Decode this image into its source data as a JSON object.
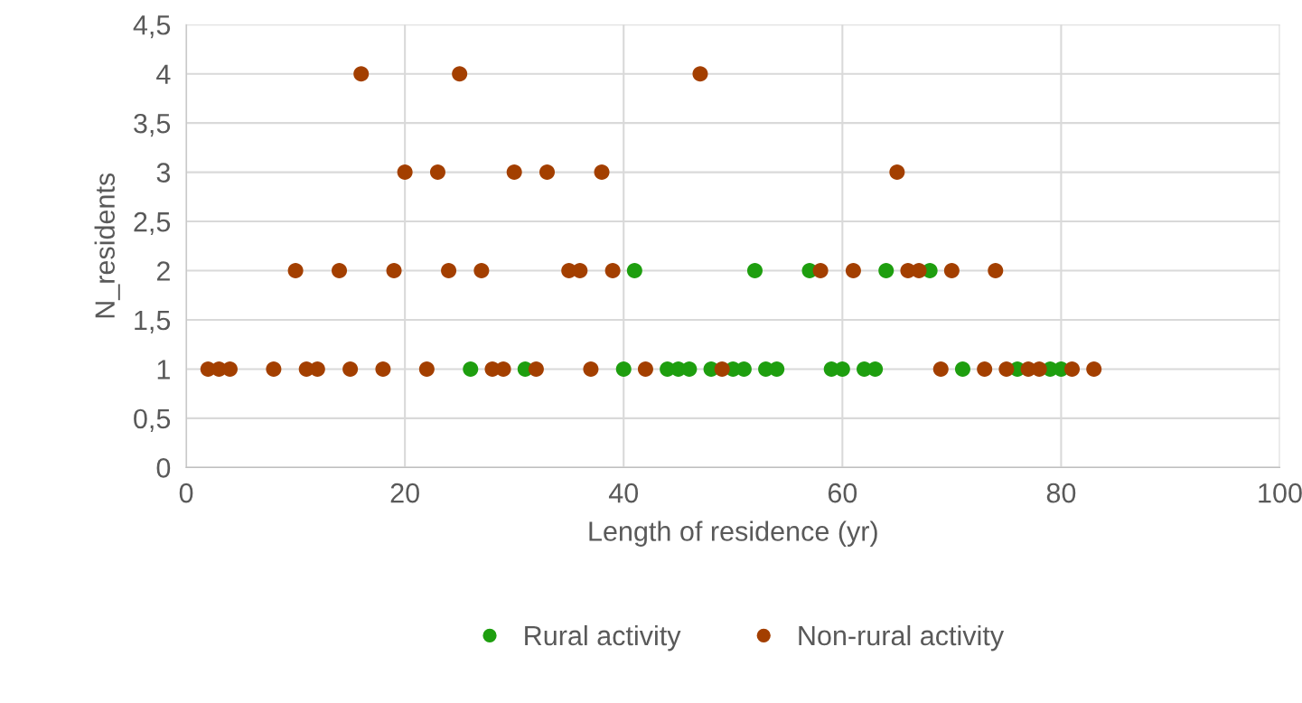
{
  "chart_data": {
    "type": "scatter",
    "xlabel": "Length of residence (yr)",
    "ylabel": "N_residents",
    "series": [
      {
        "name": "Rural activity",
        "color": "#1e9e0f",
        "x": [
          26,
          31,
          40,
          44,
          45,
          46,
          48,
          50,
          51,
          53,
          54,
          59,
          60,
          62,
          63,
          71,
          76,
          79,
          80,
          41,
          52,
          57,
          64,
          68
        ],
        "values": [
          1,
          1,
          1,
          1,
          1,
          1,
          1,
          1,
          1,
          1,
          1,
          1,
          1,
          1,
          1,
          1,
          1,
          1,
          1,
          2,
          2,
          2,
          2,
          2
        ]
      },
      {
        "name": "Non-rural activity",
        "color": "#a33f00",
        "x": [
          2,
          3,
          4,
          8,
          11,
          12,
          15,
          18,
          22,
          28,
          29,
          32,
          37,
          42,
          49,
          69,
          73,
          75,
          77,
          78,
          81,
          83,
          10,
          14,
          19,
          24,
          27,
          35,
          36,
          39,
          58,
          61,
          66,
          67,
          70,
          74,
          20,
          23,
          30,
          33,
          38,
          65,
          16,
          25,
          47
        ],
        "values": [
          1,
          1,
          1,
          1,
          1,
          1,
          1,
          1,
          1,
          1,
          1,
          1,
          1,
          1,
          1,
          1,
          1,
          1,
          1,
          1,
          1,
          1,
          2,
          2,
          2,
          2,
          2,
          2,
          2,
          2,
          2,
          2,
          2,
          2,
          2,
          2,
          3,
          3,
          3,
          3,
          3,
          3,
          4,
          4,
          4
        ]
      }
    ],
    "xlim": [
      0,
      100
    ],
    "xticks": [
      0,
      20,
      40,
      60,
      80,
      100
    ],
    "ylim": [
      0,
      4.5
    ],
    "yticks": [
      0,
      {
        "value": 0.5,
        "label": "0,5"
      },
      1,
      {
        "value": 1.5,
        "label": "1,5"
      },
      2,
      {
        "value": 2.5,
        "label": "2,5"
      },
      3,
      {
        "value": 3.5,
        "label": "3,5"
      },
      4,
      {
        "value": 4.5,
        "label": "4,5"
      }
    ],
    "grid": true,
    "legend": "bottom",
    "marker": "circle"
  }
}
